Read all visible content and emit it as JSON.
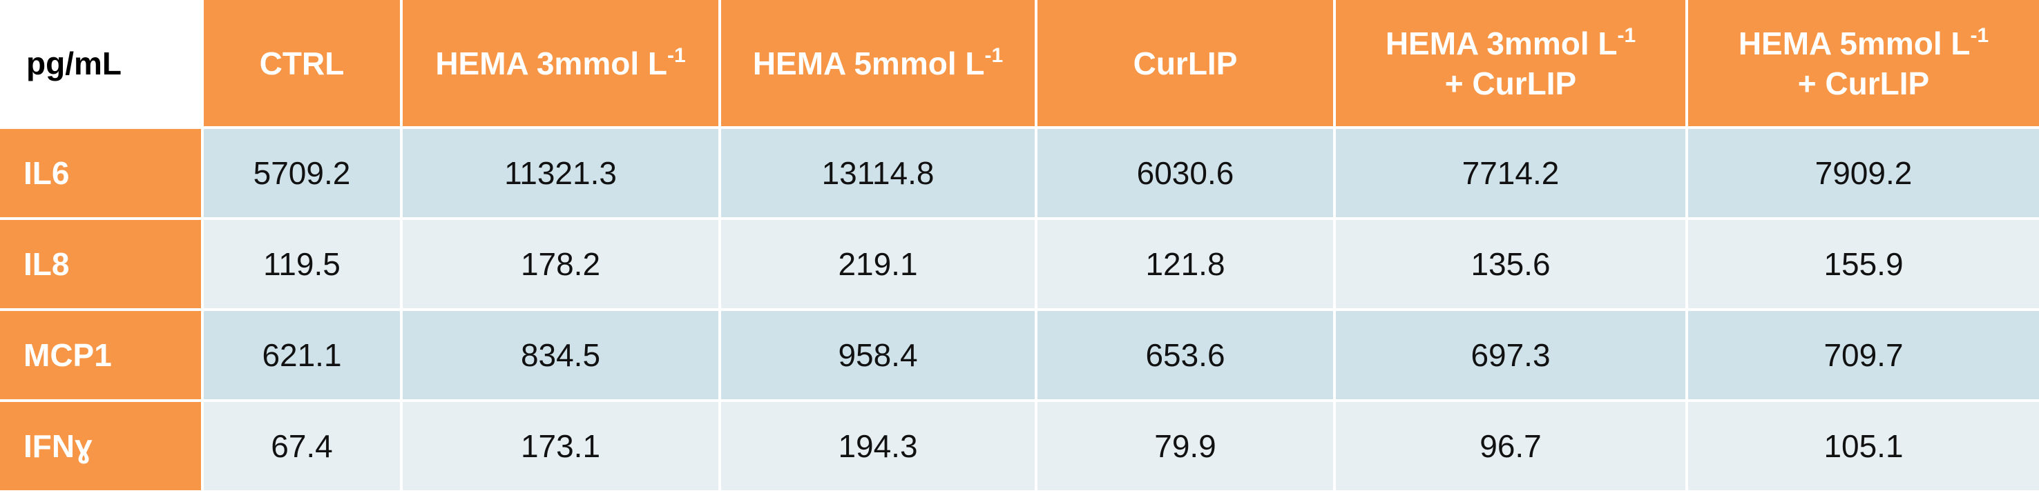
{
  "chart_data": {
    "type": "table",
    "corner_label": "pg/mL",
    "columns": [
      {
        "line1": "CTRL",
        "line1_sup": "",
        "line2": ""
      },
      {
        "line1": "HEMA 3mmol L",
        "line1_sup": "-1",
        "line2": ""
      },
      {
        "line1": "HEMA 5mmol L",
        "line1_sup": "-1",
        "line2": ""
      },
      {
        "line1": "CurLIP",
        "line1_sup": "",
        "line2": ""
      },
      {
        "line1": "HEMA 3mmol L",
        "line1_sup": "-1",
        "line2": "+ CurLIP"
      },
      {
        "line1": "HEMA 5mmol L",
        "line1_sup": "-1",
        "line2": "+ CurLIP"
      }
    ],
    "rows": [
      {
        "label": "IL6",
        "values": [
          "5709.2",
          "11321.3",
          "13114.8",
          "6030.6",
          "7714.2",
          "7909.2"
        ]
      },
      {
        "label": "IL8",
        "values": [
          "119.5",
          "178.2",
          "219.1",
          "121.8",
          "135.6",
          "155.9"
        ]
      },
      {
        "label": "MCP1",
        "values": [
          "621.1",
          "834.5",
          "958.4",
          "653.6",
          "697.3",
          "709.7"
        ]
      },
      {
        "label": "IFNɣ",
        "values": [
          "67.4",
          "173.1",
          "194.3",
          "79.9",
          "96.7",
          "105.1"
        ]
      }
    ]
  },
  "colors": {
    "header_orange": "#f79646",
    "row_band_dark": "#cfe1e9",
    "row_band_light": "#e7eff3",
    "header_text": "#ffffff",
    "cell_text": "#111111"
  }
}
